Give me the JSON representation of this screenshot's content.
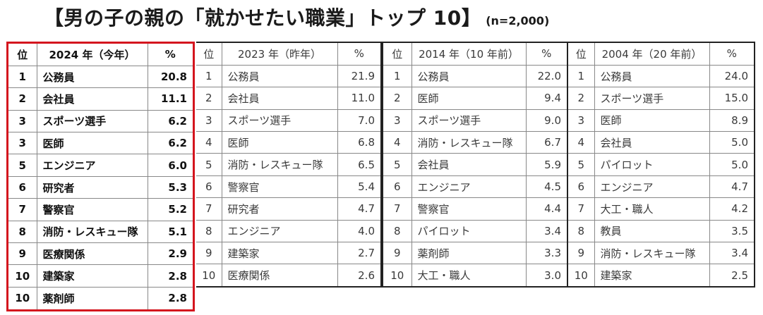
{
  "title": {
    "main": "【男の子の親の「就かせたい職業」トップ 10】",
    "sample": "(n=2,000)"
  },
  "columns": {
    "rank": "位",
    "pct": "%",
    "y2024": "2024 年（今年）",
    "y2023": "2023 年（昨年）",
    "y2014": "2014 年（10 年前）",
    "y2004": "2004 年（20 年前）"
  },
  "highlight_color": "#d4151e",
  "y2024": [
    {
      "rank": "1",
      "job": "公務員",
      "pct": "20.8"
    },
    {
      "rank": "2",
      "job": "会社員",
      "pct": "11.1"
    },
    {
      "rank": "3",
      "job": "スポーツ選手",
      "pct": "6.2"
    },
    {
      "rank": "3",
      "job": "医師",
      "pct": "6.2"
    },
    {
      "rank": "5",
      "job": "エンジニア",
      "pct": "6.0"
    },
    {
      "rank": "6",
      "job": "研究者",
      "pct": "5.3"
    },
    {
      "rank": "7",
      "job": "警察官",
      "pct": "5.2"
    },
    {
      "rank": "8",
      "job": "消防・レスキュー隊",
      "pct": "5.1"
    },
    {
      "rank": "9",
      "job": "医療関係",
      "pct": "2.9"
    },
    {
      "rank": "10",
      "job": "建築家",
      "pct": "2.8"
    },
    {
      "rank": "10",
      "job": "薬剤師",
      "pct": "2.8"
    }
  ],
  "y2023": [
    {
      "rank": "1",
      "job": "公務員",
      "pct": "21.9"
    },
    {
      "rank": "2",
      "job": "会社員",
      "pct": "11.0"
    },
    {
      "rank": "3",
      "job": "スポーツ選手",
      "pct": "7.0"
    },
    {
      "rank": "4",
      "job": "医師",
      "pct": "6.8"
    },
    {
      "rank": "5",
      "job": "消防・レスキュー隊",
      "pct": "6.5"
    },
    {
      "rank": "6",
      "job": "警察官",
      "pct": "5.4"
    },
    {
      "rank": "7",
      "job": "研究者",
      "pct": "4.7"
    },
    {
      "rank": "8",
      "job": "エンジニア",
      "pct": "4.0"
    },
    {
      "rank": "9",
      "job": "建築家",
      "pct": "2.7"
    },
    {
      "rank": "10",
      "job": "医療関係",
      "pct": "2.6"
    }
  ],
  "y2014": [
    {
      "rank": "1",
      "job": "公務員",
      "pct": "22.0"
    },
    {
      "rank": "2",
      "job": "医師",
      "pct": "9.4"
    },
    {
      "rank": "3",
      "job": "スポーツ選手",
      "pct": "9.0"
    },
    {
      "rank": "4",
      "job": "消防・レスキュー隊",
      "pct": "6.7"
    },
    {
      "rank": "5",
      "job": "会社員",
      "pct": "5.9"
    },
    {
      "rank": "6",
      "job": "エンジニア",
      "pct": "4.5"
    },
    {
      "rank": "7",
      "job": "警察官",
      "pct": "4.4"
    },
    {
      "rank": "8",
      "job": "パイロット",
      "pct": "3.4"
    },
    {
      "rank": "9",
      "job": "薬剤師",
      "pct": "3.3"
    },
    {
      "rank": "10",
      "job": "大工・職人",
      "pct": "3.0"
    }
  ],
  "y2004": [
    {
      "rank": "1",
      "job": "公務員",
      "pct": "24.0"
    },
    {
      "rank": "2",
      "job": "スポーツ選手",
      "pct": "15.0"
    },
    {
      "rank": "3",
      "job": "医師",
      "pct": "8.9"
    },
    {
      "rank": "4",
      "job": "会社員",
      "pct": "5.0"
    },
    {
      "rank": "5",
      "job": "パイロット",
      "pct": "5.0"
    },
    {
      "rank": "6",
      "job": "エンジニア",
      "pct": "4.7"
    },
    {
      "rank": "7",
      "job": "大工・職人",
      "pct": "4.2"
    },
    {
      "rank": "8",
      "job": "教員",
      "pct": "3.5"
    },
    {
      "rank": "9",
      "job": "消防・レスキュー隊",
      "pct": "3.4"
    },
    {
      "rank": "10",
      "job": "建築家",
      "pct": "2.5"
    }
  ]
}
